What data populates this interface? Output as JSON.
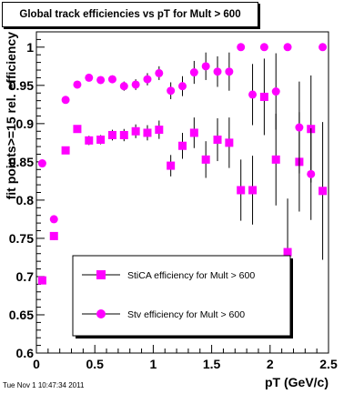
{
  "title": "Global track efficiencies vs pT for Mult > 600",
  "footer_timestamp": "Tue Nov  1 10:47:34 2011",
  "colors": {
    "marker": "#ff00ff",
    "axis": "#000000",
    "frame": "#000000"
  },
  "chart_data": {
    "type": "scatter",
    "xlabel": "pT (GeV/c)",
    "ylabel": "fit points>=15 rel. efficiency",
    "xlim": [
      0,
      2.5
    ],
    "ylim": [
      0.6,
      1.02
    ],
    "x_ticks": [
      "0",
      "0.5",
      "1",
      "1.5",
      "2",
      "2.5"
    ],
    "y_ticks": [
      "0.6",
      "0.65",
      "0.7",
      "0.75",
      "0.8",
      "0.85",
      "0.9",
      "0.95",
      "1"
    ],
    "grid": false,
    "legend_position": "bottom-center",
    "series": [
      {
        "name": "StiCA efficiency  for Mult > 600",
        "marker": "square",
        "x": [
          0.05,
          0.15,
          0.25,
          0.35,
          0.45,
          0.55,
          0.65,
          0.75,
          0.85,
          0.95,
          1.05,
          1.15,
          1.25,
          1.35,
          1.45,
          1.55,
          1.65,
          1.75,
          1.85,
          1.95,
          2.05,
          2.15,
          2.25,
          2.35,
          2.45
        ],
        "y": [
          0.695,
          0.753,
          0.865,
          0.893,
          0.878,
          0.879,
          0.885,
          0.885,
          0.89,
          0.888,
          0.892,
          0.845,
          0.871,
          0.888,
          0.853,
          0.879,
          0.875,
          0.813,
          0.813,
          0.935,
          0.853,
          0.732,
          0.85,
          0.893,
          0.812
        ],
        "yerr": [
          0.004,
          0.005,
          0.005,
          0.005,
          0.006,
          0.006,
          0.007,
          0.008,
          0.009,
          0.01,
          0.012,
          0.014,
          0.017,
          0.02,
          0.024,
          0.028,
          0.033,
          0.04,
          0.045,
          0.05,
          0.06,
          0.07,
          0.065,
          0.07,
          0.09
        ]
      },
      {
        "name": "Stv efficiency  for Mult > 600",
        "marker": "circle",
        "x": [
          0.05,
          0.15,
          0.25,
          0.35,
          0.45,
          0.55,
          0.65,
          0.75,
          0.85,
          0.95,
          1.05,
          1.15,
          1.25,
          1.35,
          1.45,
          1.55,
          1.65,
          1.75,
          1.85,
          1.95,
          2.05,
          2.15,
          2.25,
          2.35,
          2.45
        ],
        "y": [
          0.848,
          0.775,
          0.931,
          0.951,
          0.96,
          0.957,
          0.958,
          0.949,
          0.951,
          0.958,
          0.966,
          0.943,
          0.949,
          0.967,
          0.975,
          0.968,
          0.968,
          1.0,
          0.938,
          1.0,
          0.942,
          1.0,
          0.895,
          0.834,
          1.0
        ],
        "yerr": [
          0.004,
          0.004,
          0.003,
          0.003,
          0.004,
          0.004,
          0.005,
          0.006,
          0.007,
          0.008,
          0.009,
          0.011,
          0.013,
          0.015,
          0.018,
          0.02,
          0.025,
          0.0,
          0.04,
          0.0,
          0.05,
          0.0,
          0.06,
          0.06,
          0.0
        ]
      }
    ]
  }
}
